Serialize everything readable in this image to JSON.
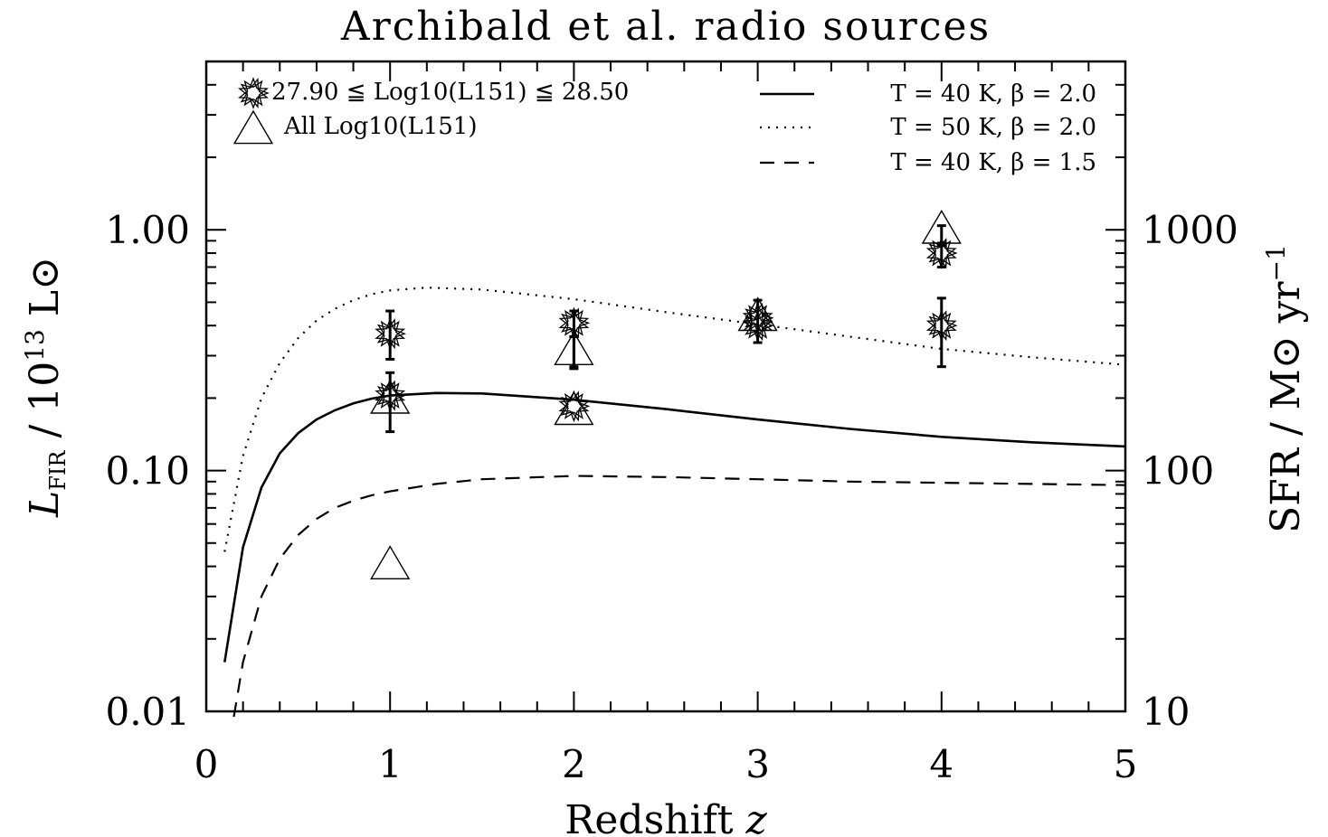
{
  "chart_data": {
    "type": "scatter",
    "title": "Archibald et al. radio sources",
    "xlabel": "Redshift z",
    "ylabel": "L_FIR / 10^13 L_sun",
    "y2label": "SFR / M_sun yr^-1",
    "xlim": [
      0,
      5
    ],
    "ylim": [
      0.01,
      5.0
    ],
    "yscale": "log",
    "x_ticks": [
      "0",
      "1",
      "2",
      "3",
      "4",
      "5"
    ],
    "y_ticks": [
      {
        "value": 0.01,
        "label": "0.01"
      },
      {
        "value": 0.1,
        "label": "0.10"
      },
      {
        "value": 1.0,
        "label": "1.00"
      }
    ],
    "y2_ticks": [
      {
        "value": 0.01,
        "label": "10"
      },
      {
        "value": 0.1,
        "label": "100"
      },
      {
        "value": 1.0,
        "label": "1000"
      }
    ],
    "legend_placement": "top",
    "series": [
      {
        "name": "27.90 ≦ Log10(L151) ≦ 28.50",
        "marker": "star",
        "points": [
          {
            "x": 1,
            "y": 0.37,
            "err_lo": 0.29,
            "err_hi": 0.46
          },
          {
            "x": 1,
            "y": 0.205,
            "err_lo": 0.145,
            "err_hi": 0.255
          },
          {
            "x": 2,
            "y": 0.41,
            "err_lo": 0.265,
            "err_hi": 0.46
          },
          {
            "x": 2,
            "y": 0.185
          },
          {
            "x": 3,
            "y": 0.43,
            "err_lo": 0.34,
            "err_hi": 0.51
          },
          {
            "x": 3,
            "y": 0.4
          },
          {
            "x": 4,
            "y": 0.8,
            "err_lo": 0.7,
            "err_hi": 0.88
          },
          {
            "x": 4,
            "y": 0.4,
            "err_lo": 0.27,
            "err_hi": 0.52
          }
        ]
      },
      {
        "name": "All Log10(L151)",
        "marker": "triangle",
        "points": [
          {
            "x": 1,
            "y": 0.195
          },
          {
            "x": 1,
            "y": 0.04
          },
          {
            "x": 2,
            "y": 0.31,
            "err_lo": 0.27,
            "err_hi": 0.36
          },
          {
            "x": 2,
            "y": 0.175
          },
          {
            "x": 3,
            "y": 0.43
          },
          {
            "x": 4,
            "y": 0.99,
            "err_lo": 0.86,
            "err_hi": 1.04
          }
        ]
      }
    ],
    "curves": [
      {
        "name": "T = 40 K, β = 2.0",
        "style": "solid",
        "x": [
          0.1,
          0.2,
          0.3,
          0.4,
          0.5,
          0.6,
          0.7,
          0.8,
          0.9,
          1.0,
          1.25,
          1.5,
          2.0,
          2.5,
          3.0,
          3.5,
          4.0,
          4.5,
          5.0
        ],
        "y": [
          0.016,
          0.048,
          0.085,
          0.118,
          0.143,
          0.163,
          0.178,
          0.19,
          0.199,
          0.205,
          0.21,
          0.209,
          0.197,
          0.18,
          0.163,
          0.149,
          0.138,
          0.131,
          0.126
        ]
      },
      {
        "name": "T = 50 K, β = 2.0",
        "style": "dotted",
        "x": [
          0.1,
          0.2,
          0.3,
          0.4,
          0.5,
          0.6,
          0.7,
          0.8,
          0.9,
          1.0,
          1.2,
          1.5,
          2.0,
          2.5,
          3.0,
          3.5,
          4.0,
          4.5,
          5.0
        ],
        "y": [
          0.046,
          0.115,
          0.2,
          0.28,
          0.355,
          0.42,
          0.47,
          0.51,
          0.54,
          0.56,
          0.575,
          0.565,
          0.515,
          0.455,
          0.405,
          0.36,
          0.32,
          0.295,
          0.275
        ]
      },
      {
        "name": "T = 40 K, β = 1.5",
        "style": "dashed",
        "x": [
          0.15,
          0.2,
          0.3,
          0.4,
          0.5,
          0.6,
          0.7,
          0.8,
          0.9,
          1.0,
          1.25,
          1.5,
          2.0,
          2.5,
          3.0,
          3.5,
          4.0,
          4.5,
          5.0
        ],
        "y": [
          0.0095,
          0.016,
          0.03,
          0.043,
          0.054,
          0.063,
          0.07,
          0.075,
          0.079,
          0.082,
          0.088,
          0.092,
          0.095,
          0.094,
          0.092,
          0.09,
          0.089,
          0.088,
          0.087
        ]
      }
    ]
  }
}
